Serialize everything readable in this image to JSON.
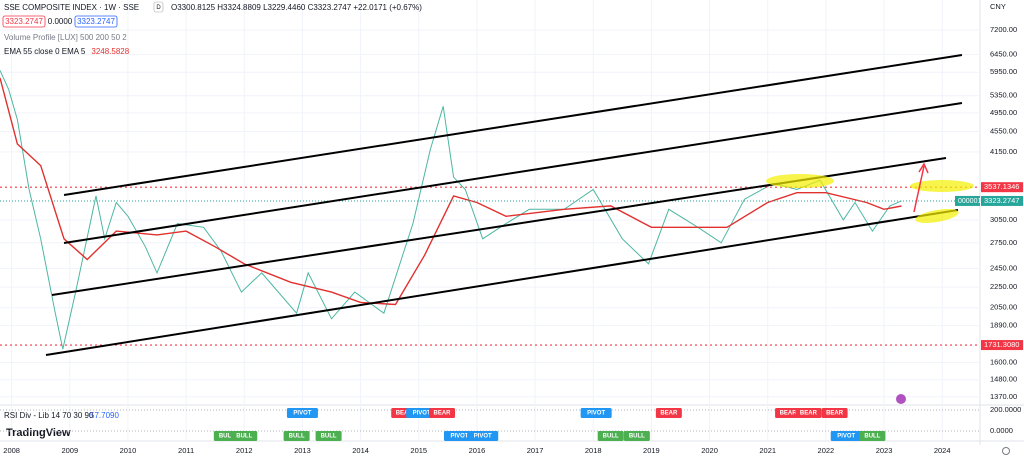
{
  "toolbar": {
    "ohlc": "O3300.8125 H3324.8809 L3229.4460 C3323.2747 +22.0171 (+0.67%)",
    "buttons": [
      "3323.2747",
      "0.0000",
      "3323.2747"
    ],
    "interval_badge": "D",
    "indicator_1": "Volume Profile [LUX] 500 200 50 2",
    "currency": "CNY",
    "ticker": "000001",
    "brand": "TradingView"
  },
  "chart_data": {
    "type": "line",
    "log_scale": true,
    "xlim": [
      2007.8,
      2024.65
    ],
    "xticks": [
      2008,
      2009,
      2010,
      2011,
      2012,
      2013,
      2014,
      2015,
      2016,
      2017,
      2018,
      2019,
      2020,
      2021,
      2022,
      2023,
      2024
    ],
    "ylim": [
      1320,
      8250
    ],
    "yticks": [
      {
        "value": 7200,
        "label": "7200.00"
      },
      {
        "value": 6450,
        "label": "6450.00"
      },
      {
        "value": 5950,
        "label": "5950.00"
      },
      {
        "value": 5350,
        "label": "5350.00"
      },
      {
        "value": 4950,
        "label": "4950.00"
      },
      {
        "value": 4550,
        "label": "4550.00"
      },
      {
        "value": 4150,
        "label": "4150.00"
      },
      {
        "value": 3050,
        "label": "3050.00"
      },
      {
        "value": 2750,
        "label": "2750.00"
      },
      {
        "value": 2450,
        "label": "2450.00"
      },
      {
        "value": 2250,
        "label": "2250.00"
      },
      {
        "value": 2050,
        "label": "2050.00"
      },
      {
        "value": 1890,
        "label": "1890.00"
      },
      {
        "value": 1600,
        "label": "1600.00"
      },
      {
        "value": 1480,
        "label": "1480.00"
      },
      {
        "value": 1370,
        "label": "1370.00"
      }
    ],
    "series": [
      {
        "name": "SSE COMPOSITE INDEX · 1W · SSE",
        "color": "#4db6a2",
        "x": [
          2007.8,
          2007.95,
          2008.1,
          2008.3,
          2008.5,
          2008.75,
          2008.88,
          2009.1,
          2009.45,
          2009.6,
          2009.8,
          2010.0,
          2010.3,
          2010.5,
          2010.85,
          2011.3,
          2011.6,
          2011.95,
          2012.3,
          2012.9,
          2013.1,
          2013.5,
          2013.9,
          2014.4,
          2014.9,
          2015.2,
          2015.42,
          2015.6,
          2015.8,
          2016.1,
          2016.5,
          2016.9,
          2017.5,
          2018.0,
          2018.5,
          2018.95,
          2019.3,
          2019.8,
          2020.2,
          2020.6,
          2021.1,
          2021.5,
          2021.9,
          2022.3,
          2022.5,
          2022.8,
          2023.1,
          2023.3
        ],
        "values": [
          6000,
          5500,
          4800,
          3500,
          2800,
          2000,
          1700,
          2200,
          3400,
          2800,
          3300,
          3100,
          2700,
          2400,
          3000,
          2950,
          2650,
          2200,
          2400,
          2000,
          2400,
          1950,
          2200,
          2000,
          3000,
          4200,
          5100,
          3700,
          3500,
          2800,
          3000,
          3200,
          3200,
          3500,
          2800,
          2500,
          3200,
          2950,
          2750,
          3350,
          3600,
          3500,
          3650,
          3050,
          3300,
          2900,
          3250,
          3323.2747
        ]
      },
      {
        "name": "EMA 55 close 0 EMA 5",
        "color": "#e0312f",
        "x": [
          2007.8,
          2008.1,
          2008.5,
          2008.9,
          2009.3,
          2009.8,
          2010.5,
          2011.0,
          2011.5,
          2012.0,
          2012.8,
          2013.5,
          2014.0,
          2014.6,
          2015.1,
          2015.6,
          2016.0,
          2016.5,
          2017.5,
          2018.3,
          2019.0,
          2019.5,
          2020.3,
          2021.0,
          2021.5,
          2022.0,
          2022.7,
          2023.0,
          2023.3
        ],
        "values": [
          5800,
          4300,
          3900,
          2800,
          2550,
          2900,
          2850,
          2900,
          2700,
          2500,
          2300,
          2200,
          2100,
          2080,
          2600,
          3400,
          3300,
          3100,
          3200,
          3250,
          2950,
          2950,
          2950,
          3300,
          3450,
          3450,
          3300,
          3200,
          3248.5828
        ]
      }
    ],
    "hlines": [
      {
        "value": 3537.1346,
        "color": "#f23645"
      },
      {
        "value": 1731.308,
        "label": "1731.3080",
        "color": "#f23645"
      }
    ]
  },
  "rsi_panel": {
    "title": "RSI Div - Lib 14 70 30 90",
    "value": "57.7090",
    "ylim": [
      -86,
      248
    ],
    "yticks": [
      {
        "value": 200,
        "label": "200.0000"
      },
      {
        "value": 0,
        "label": "0.0000"
      }
    ],
    "signals": [
      {
        "x": 2013.0,
        "label": "PIVOT",
        "position": "top",
        "color": "#2196f3"
      },
      {
        "x": 2014.75,
        "label": "BEAR",
        "position": "top",
        "color": "#f23645"
      },
      {
        "x": 2015.05,
        "label": "PIVOT",
        "position": "top",
        "color": "#2196f3"
      },
      {
        "x": 2015.4,
        "label": "BEAR",
        "position": "top",
        "color": "#f23645"
      },
      {
        "x": 2018.05,
        "label": "PIVOT",
        "position": "top",
        "color": "#2196f3"
      },
      {
        "x": 2019.3,
        "label": "BEAR",
        "position": "top",
        "color": "#f23645"
      },
      {
        "x": 2021.35,
        "label": "BEAR",
        "position": "top",
        "color": "#f23645"
      },
      {
        "x": 2021.7,
        "label": "BEAR",
        "position": "top",
        "color": "#f23645"
      },
      {
        "x": 2022.15,
        "label": "BEAR",
        "position": "top",
        "color": "#f23645"
      },
      {
        "x": 2011.7,
        "label": "BULL",
        "position": "bottom",
        "color": "#4caf50"
      },
      {
        "x": 2012.0,
        "label": "BULL",
        "position": "bottom",
        "color": "#4caf50"
      },
      {
        "x": 2012.9,
        "label": "BULL",
        "position": "bottom",
        "color": "#4caf50"
      },
      {
        "x": 2013.45,
        "label": "BULL",
        "position": "bottom",
        "color": "#4caf50"
      },
      {
        "x": 2015.7,
        "label": "PIVOT",
        "position": "bottom",
        "color": "#2196f3"
      },
      {
        "x": 2016.1,
        "label": "PIVOT",
        "position": "bottom",
        "color": "#2196f3"
      },
      {
        "x": 2018.3,
        "label": "BULL",
        "position": "bottom",
        "color": "#4caf50"
      },
      {
        "x": 2018.75,
        "label": "BULL",
        "position": "bottom",
        "color": "#4caf50"
      },
      {
        "x": 2022.35,
        "label": "PIVOT",
        "position": "bottom",
        "color": "#2196f3"
      },
      {
        "x": 2022.8,
        "label": "BULL",
        "position": "bottom",
        "color": "#4caf50"
      }
    ]
  }
}
